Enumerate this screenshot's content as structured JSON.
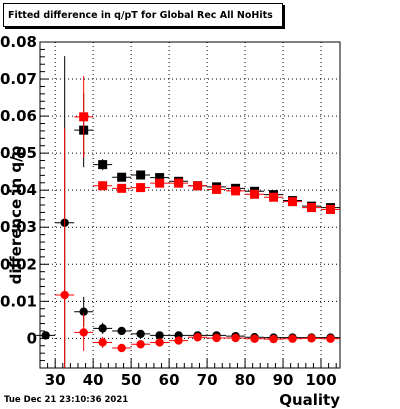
{
  "header": {
    "title": "Fitted difference in q/pT  for Global Rec All NoHits"
  },
  "footer": {
    "timestamp": "Tue Dec 21 23:10:36 2021"
  },
  "chart_data": {
    "type": "scatter",
    "title": "Fitted difference in q/pT  for Global Rec All NoHits",
    "xlabel": "Quality",
    "ylabel": "difference in q/p",
    "xlim": [
      26,
      105
    ],
    "ylim": [
      -0.008,
      0.08
    ],
    "xticks": [
      30,
      40,
      50,
      60,
      70,
      80,
      90,
      100
    ],
    "xtick_labels": [
      "30",
      "40",
      "50",
      "60",
      "70",
      "80",
      "90",
      "100"
    ],
    "yticks": [
      0,
      0.01,
      0.02,
      0.03,
      0.04,
      0.05,
      0.06,
      0.07,
      0.08
    ],
    "ytick_labels": [
      "0",
      "0.01",
      "0.02",
      "0.03",
      "0.04",
      "0.05",
      "0.06",
      "0.07",
      "0.08"
    ],
    "grid": true,
    "x": [
      27.5,
      32.5,
      37.5,
      42.5,
      47.5,
      52.5,
      57.5,
      62.5,
      67.5,
      72.5,
      77.5,
      82.5,
      87.5,
      92.5,
      97.5,
      102.5
    ],
    "series": [
      {
        "marker": "square",
        "color": "#000000",
        "values": [
          null,
          null,
          0.0562,
          0.0469,
          0.0435,
          0.0441,
          0.0434,
          0.0424,
          0.0412,
          0.0409,
          0.0405,
          0.0397,
          0.0388,
          0.0372,
          0.0357,
          0.0353
        ],
        "errors": [
          null,
          null,
          0.01,
          0.0015,
          0.001,
          0.0008,
          0.0007,
          0.0006,
          0.0006,
          0.0006,
          0.0006,
          0.0006,
          0.0006,
          0.0007,
          0.0007,
          0.0008
        ]
      },
      {
        "marker": "square",
        "color": "#ff0000",
        "values": [
          null,
          null,
          0.0598,
          0.0412,
          0.0405,
          0.0407,
          0.0419,
          0.0419,
          0.0412,
          0.0402,
          0.0398,
          0.0389,
          0.0381,
          0.0369,
          0.0353,
          0.0348
        ],
        "errors": [
          null,
          null,
          0.011,
          0.0012,
          0.0008,
          0.0007,
          0.0006,
          0.0006,
          0.0006,
          0.0006,
          0.0006,
          0.0006,
          0.0006,
          0.0006,
          0.0007,
          0.0008
        ]
      },
      {
        "marker": "circle",
        "color": "#000000",
        "values": [
          0.0008,
          0.0312,
          0.0072,
          0.0027,
          0.002,
          0.0012,
          0.0008,
          0.0008,
          0.0008,
          0.0008,
          0.0006,
          0.0003,
          0.0002,
          0.0002,
          0.0002,
          0.0002
        ],
        "errors": [
          0.0005,
          0.045,
          0.004,
          0.0015,
          0.0008,
          0.0006,
          0.0005,
          0.0005,
          0.0005,
          0.0005,
          0.0005,
          0.0005,
          0.0005,
          0.0005,
          0.0005,
          0.0005
        ]
      },
      {
        "marker": "circle",
        "color": "#ff0000",
        "values": [
          null,
          0.0117,
          0.0016,
          -0.0011,
          -0.0026,
          -0.0016,
          -0.0011,
          -0.0006,
          0.0003,
          0.0001,
          0.0001,
          -0.0001,
          -0.0002,
          -0.0001,
          0.0,
          -0.0001
        ],
        "errors": [
          null,
          0.045,
          0.005,
          0.0015,
          0.0008,
          0.0006,
          0.0005,
          0.0005,
          0.0005,
          0.0005,
          0.0005,
          0.0005,
          0.0005,
          0.0005,
          0.0005,
          0.0005
        ]
      }
    ]
  }
}
